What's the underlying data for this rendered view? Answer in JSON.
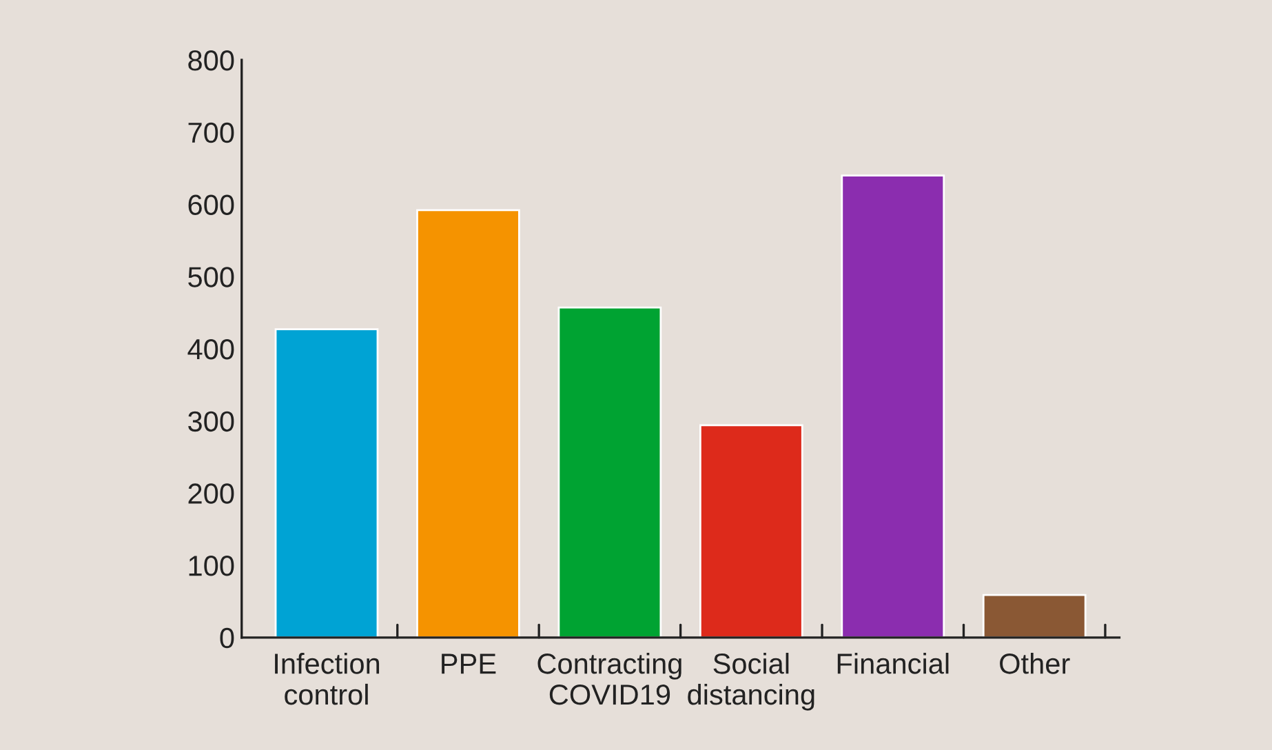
{
  "chart_data": {
    "type": "bar",
    "categories": [
      "Infection\ncontrol",
      "PPE",
      "Contracting\nCOVID19",
      "Social\ndistancing",
      "Financial",
      "Other"
    ],
    "values": [
      427,
      592,
      457,
      294,
      640,
      59
    ],
    "colors": [
      "#00a3d4",
      "#f59300",
      "#00a332",
      "#dd2a1b",
      "#8b2daf",
      "#8a5834"
    ],
    "ylim": [
      0,
      800
    ],
    "yticks": [
      0,
      100,
      200,
      300,
      400,
      500,
      600,
      700,
      800
    ],
    "grid": false,
    "legend": false
  }
}
